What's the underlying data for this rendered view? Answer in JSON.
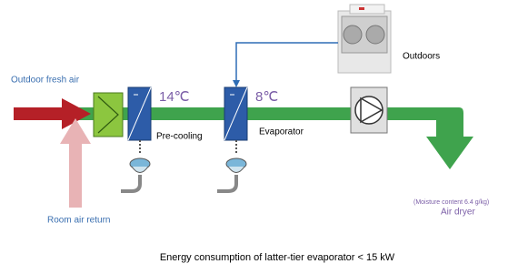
{
  "labels": {
    "fresh_air": "Outdoor fresh air",
    "return_air": "Room air return",
    "precool_temp": "14℃",
    "precool": "Pre-cooling",
    "evap_temp": "8℃",
    "evaporator": "Evaporator",
    "outdoors": "Outdoors",
    "moisture": "(Moisture content 6.4 g/kg)",
    "dryer": "Air dryer",
    "footer": "Energy consumption of latter-tier evaporator < 15 kW"
  }
}
